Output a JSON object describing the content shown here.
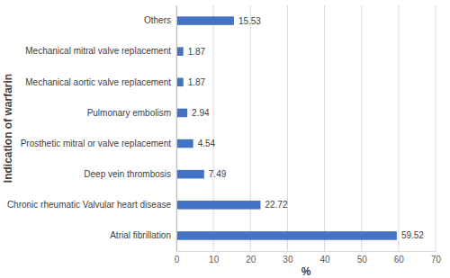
{
  "chart_data": {
    "type": "bar",
    "orientation": "horizontal",
    "x_label": "%",
    "y_label": "Indication of warfarin",
    "categories": [
      "Atrial fibrillation",
      "Chronic rheumatic Valvular heart disease",
      "Deep vein thrombosis",
      "Prosthetic mitral or valve replacement",
      "Pulmonary embolism",
      "Mechanical aortic valve replacement",
      "Mechanical mitral valve replacement",
      "Others"
    ],
    "values": [
      59.52,
      22.72,
      7.49,
      4.54,
      2.94,
      1.87,
      1.87,
      15.53
    ],
    "color": "#4472c4",
    "xlim": [
      0,
      70
    ],
    "xticks": [
      0,
      10,
      20,
      30,
      40,
      50,
      60,
      70
    ],
    "grid": true,
    "data_labels": true
  }
}
